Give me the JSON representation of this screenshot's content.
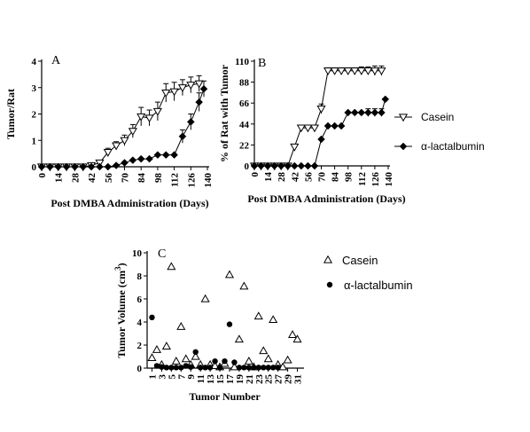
{
  "chart_data": [
    {
      "type": "line",
      "panel": "A",
      "xlabel": "Post DMBA Administration (Days)",
      "ylabel": "Tumor/Rat",
      "xlim": [
        0,
        140
      ],
      "ylim": [
        0,
        4
      ],
      "xticks": [
        0,
        14,
        28,
        42,
        56,
        70,
        84,
        98,
        112,
        126,
        140
      ],
      "yticks": [
        0,
        1,
        2,
        3,
        4
      ],
      "series": [
        {
          "marker": "open-triangle",
          "x": [
            0,
            7,
            14,
            21,
            28,
            35,
            42,
            49,
            56,
            63,
            70,
            77,
            84,
            91,
            98,
            105,
            112,
            119,
            126,
            133
          ],
          "y": [
            0,
            0,
            0,
            0,
            0,
            0,
            0.05,
            0.15,
            0.55,
            0.8,
            1.0,
            1.35,
            1.9,
            1.85,
            2.1,
            2.8,
            2.85,
            3.0,
            3.1,
            3.15
          ],
          "err": [
            0,
            0,
            0,
            0,
            0,
            0,
            0.05,
            0.1,
            0.15,
            0.15,
            0.2,
            0.25,
            0.35,
            0.3,
            0.35,
            0.35,
            0.35,
            0.3,
            0.3,
            0.3
          ]
        },
        {
          "marker": "filled-diamond",
          "x": [
            0,
            7,
            14,
            21,
            28,
            35,
            42,
            49,
            56,
            63,
            70,
            77,
            84,
            91,
            98,
            105,
            112,
            119,
            126,
            133,
            137
          ],
          "y": [
            0,
            0,
            0,
            0,
            0,
            0,
            0,
            0,
            0,
            0.05,
            0.15,
            0.25,
            0.3,
            0.3,
            0.45,
            0.45,
            0.45,
            1.15,
            1.7,
            2.45,
            2.95
          ],
          "err": [
            0,
            0,
            0,
            0,
            0,
            0,
            0,
            0,
            0,
            0,
            0,
            0,
            0,
            0,
            0,
            0,
            0,
            0.25,
            0.3,
            0.35,
            0.3
          ]
        }
      ]
    },
    {
      "type": "line",
      "panel": "B",
      "xlabel": "Post DMBA Administration (Days)",
      "ylabel": "% of Rat with Tumor",
      "xlim": [
        0,
        140
      ],
      "ylim": [
        0,
        110
      ],
      "xticks": [
        0,
        14,
        28,
        42,
        56,
        70,
        84,
        98,
        112,
        126,
        140
      ],
      "yticks": [
        0,
        22,
        44,
        66,
        88,
        110
      ],
      "legend": [
        "Casein",
        "α-lactalbumin"
      ],
      "legend_position": "right",
      "series": [
        {
          "name": "Casein",
          "marker": "open-triangle",
          "x": [
            0,
            7,
            14,
            21,
            28,
            35,
            42,
            49,
            56,
            63,
            70,
            77,
            84,
            91,
            98,
            105,
            112,
            119,
            126,
            133
          ],
          "y": [
            0,
            0,
            0,
            0,
            0,
            0,
            20,
            40,
            40,
            40,
            60,
            100,
            100,
            100,
            100,
            100,
            100,
            100,
            100,
            100
          ],
          "err": [
            0,
            0,
            0,
            0,
            0,
            0,
            0,
            0,
            0,
            0,
            5,
            3,
            3,
            3,
            3,
            3,
            4,
            4,
            5,
            5
          ]
        },
        {
          "name": "α-lactalbumin",
          "marker": "filled-diamond",
          "x": [
            0,
            7,
            14,
            21,
            28,
            35,
            42,
            49,
            56,
            63,
            70,
            77,
            84,
            91,
            98,
            105,
            112,
            119,
            126,
            133,
            137
          ],
          "y": [
            0,
            0,
            0,
            0,
            0,
            0,
            0,
            0,
            0,
            0,
            28,
            42,
            42,
            42,
            56,
            56,
            56,
            56,
            56,
            56,
            70
          ],
          "err": [
            0,
            0,
            0,
            0,
            0,
            0,
            0,
            0,
            0,
            0,
            0,
            0,
            0,
            0,
            0,
            0,
            0,
            4,
            4,
            4,
            0
          ]
        }
      ]
    },
    {
      "type": "scatter",
      "panel": "C",
      "xlabel": "Tumor Number",
      "ylabel": "Tumor Volume (cm",
      "ylabel_superscript": "3",
      "ylabel_suffix": ")",
      "xlim": [
        0,
        32
      ],
      "ylim": [
        0,
        10
      ],
      "xticks": [
        1,
        3,
        5,
        7,
        9,
        11,
        13,
        15,
        17,
        19,
        21,
        23,
        25,
        27,
        29,
        31
      ],
      "yticks": [
        0,
        2,
        4,
        6,
        8,
        10
      ],
      "legend": [
        "Casein",
        "α-lactalbumin"
      ],
      "legend_position": "top-right",
      "series": [
        {
          "name": "Casein",
          "marker": "open-triangle",
          "x": [
            1,
            2,
            3,
            4,
            5,
            6,
            7,
            8,
            9,
            10,
            11,
            12,
            13,
            14,
            15,
            16,
            17,
            18,
            19,
            20,
            21,
            22,
            23,
            24,
            25,
            26,
            27,
            28,
            29,
            30,
            31
          ],
          "y": [
            0.9,
            1.6,
            0.3,
            1.9,
            8.8,
            0.6,
            3.6,
            0.8,
            0.3,
            1.0,
            0.3,
            6.0,
            0.3,
            0.2,
            0.1,
            0.4,
            8.1,
            0.1,
            2.5,
            7.1,
            0.6,
            0.1,
            4.5,
            1.5,
            0.8,
            4.2,
            0.3,
            0.1,
            0.7,
            2.9,
            2.5
          ]
        },
        {
          "name": "α-lactalbumin",
          "marker": "filled-circle",
          "x": [
            1,
            2,
            3,
            4,
            5,
            6,
            7,
            8,
            9,
            10,
            11,
            12,
            13,
            14,
            15,
            16,
            17,
            18,
            19,
            20,
            21,
            22,
            23,
            24,
            25,
            26,
            27
          ],
          "y": [
            4.4,
            0.2,
            0.1,
            0.05,
            0.05,
            0.05,
            0.05,
            0.2,
            0.1,
            1.4,
            0.05,
            0.05,
            0.05,
            0.6,
            0.05,
            0.6,
            3.8,
            0.5,
            0.05,
            0.05,
            0.05,
            0.05,
            0.05,
            0.05,
            0.05,
            0.05,
            0.05
          ]
        }
      ]
    }
  ]
}
